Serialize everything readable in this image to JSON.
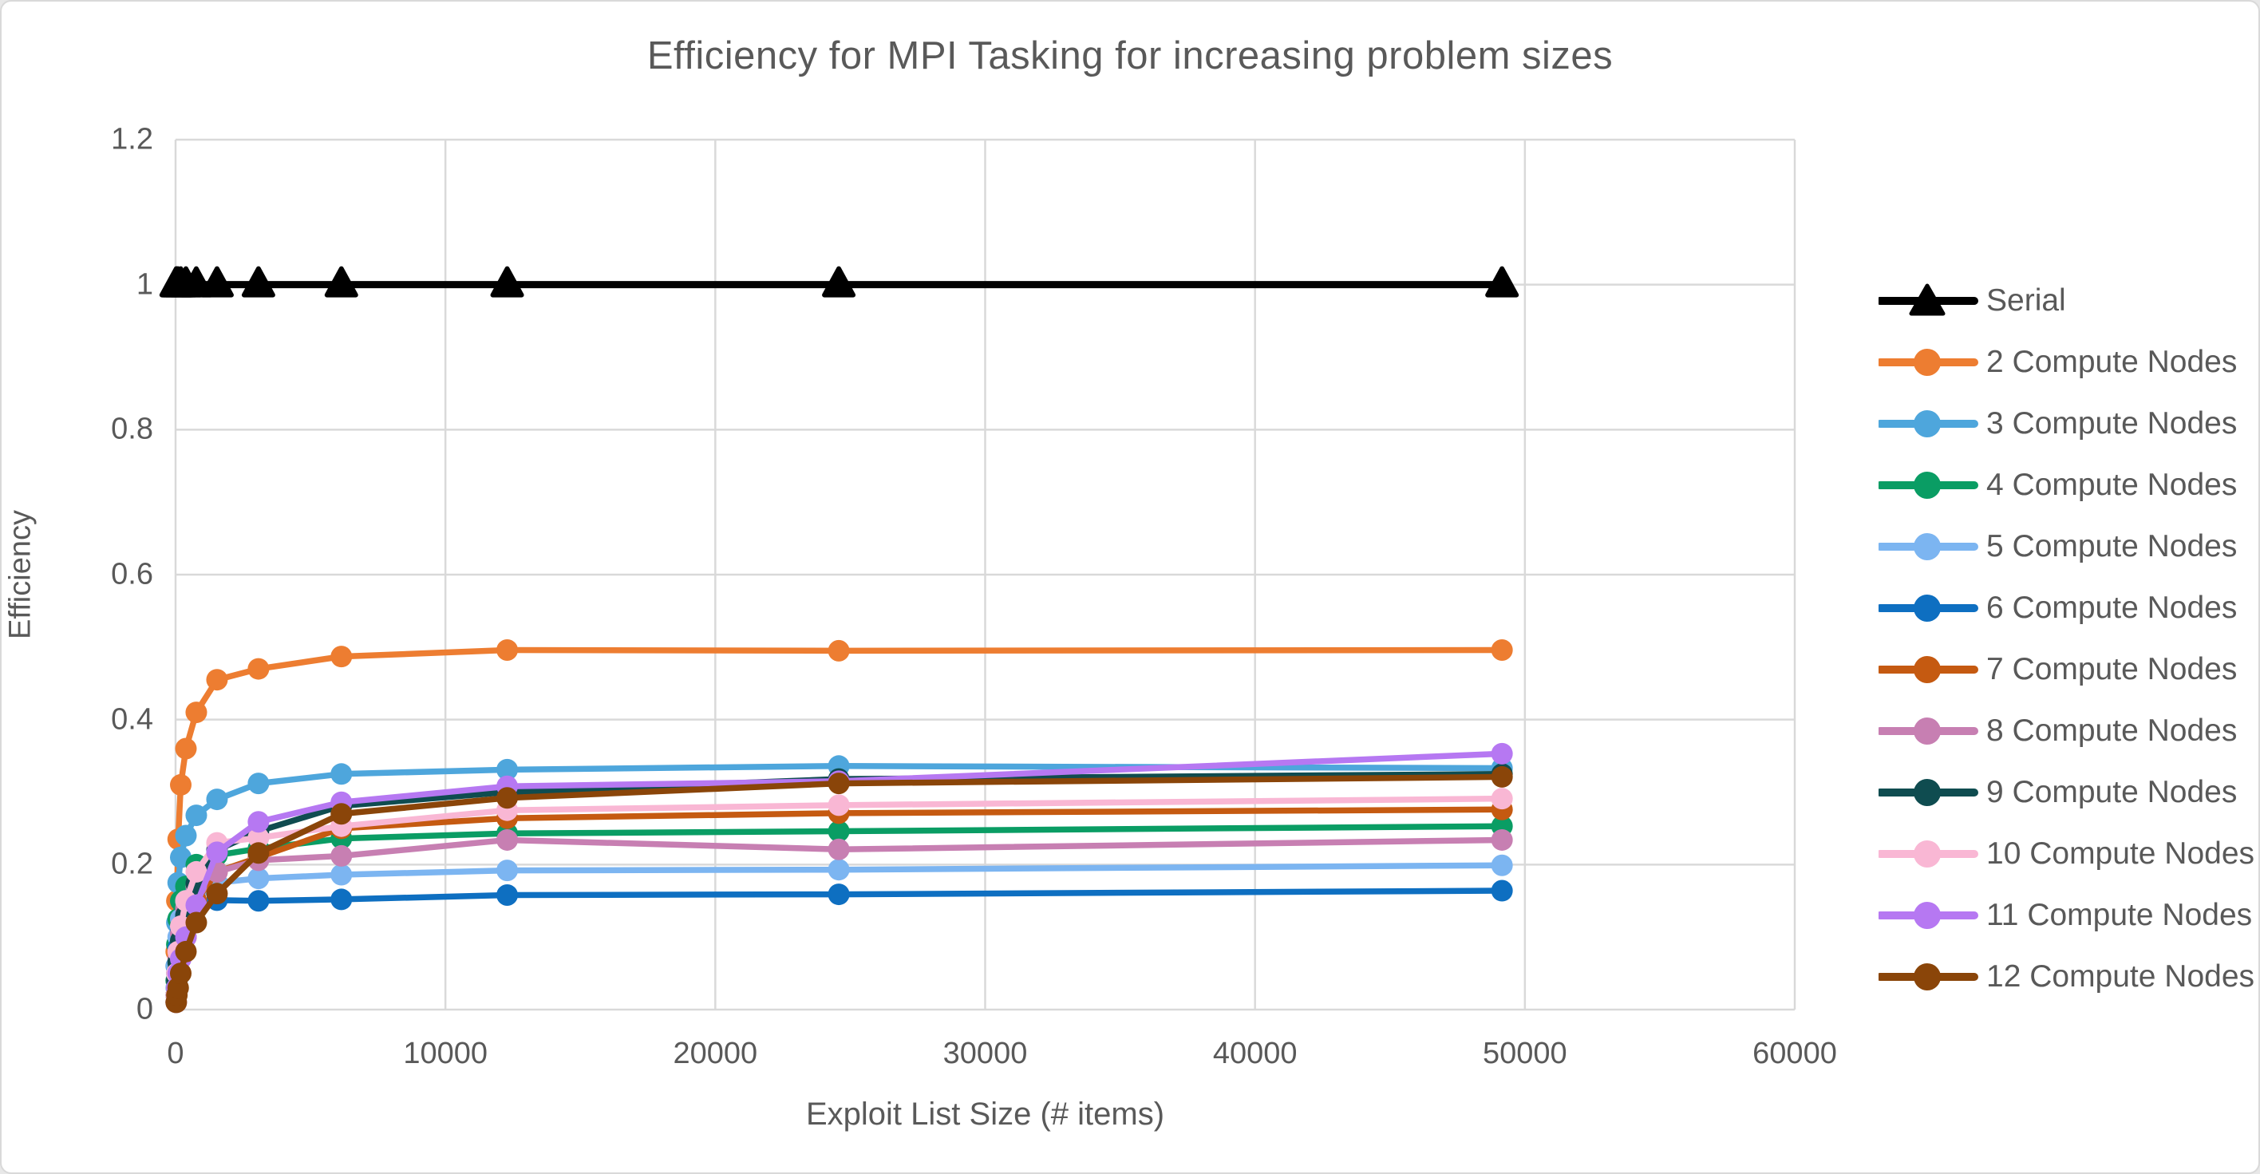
{
  "styles": {
    "background": "#FFFFFF",
    "border": "#D9D9D9",
    "gridline": "#D9D9D9",
    "text": "#595959"
  },
  "chart_data": {
    "type": "line",
    "title": "Efficiency for MPI Tasking for increasing problem sizes",
    "xlabel": "Exploit List Size (# items)",
    "ylabel": "Efficiency",
    "xlim": [
      0,
      60000
    ],
    "ylim": [
      0,
      1.2
    ],
    "grid": true,
    "legend_position": "right",
    "x_ticks": [
      0,
      10000,
      20000,
      30000,
      40000,
      50000,
      60000
    ],
    "x_tick_labels": [
      "0",
      "10000",
      "20000",
      "30000",
      "40000",
      "50000",
      "60000"
    ],
    "y_ticks": [
      0,
      0.2,
      0.4,
      0.6,
      0.8,
      1,
      1.2
    ],
    "y_tick_labels": [
      "0",
      "0.2",
      "0.4",
      "0.6",
      "0.8",
      "1",
      "1.2"
    ],
    "x": [
      24,
      48,
      96,
      192,
      384,
      768,
      1536,
      3072,
      6144,
      12288,
      24576,
      49152
    ],
    "series": [
      {
        "name": "Serial",
        "color": "#000000",
        "marker": "triangle",
        "values": [
          1,
          1,
          1,
          1,
          1,
          1,
          1,
          1,
          1,
          1,
          1,
          1
        ]
      },
      {
        "name": "2 Compute Nodes",
        "color": "#ED7D31",
        "marker": "circle",
        "values": [
          0.08,
          0.15,
          0.235,
          0.31,
          0.36,
          0.41,
          0.455,
          0.47,
          0.487,
          0.496,
          0.495,
          0.496
        ]
      },
      {
        "name": "3 Compute Nodes",
        "color": "#4EA6DC",
        "marker": "circle",
        "values": [
          0.06,
          0.12,
          0.175,
          0.21,
          0.24,
          0.268,
          0.29,
          0.312,
          0.325,
          0.331,
          0.336,
          0.333
        ]
      },
      {
        "name": "4 Compute Nodes",
        "color": "#0A9D64",
        "marker": "circle",
        "values": [
          0.04,
          0.09,
          0.125,
          0.15,
          0.17,
          0.2,
          0.213,
          0.222,
          0.236,
          0.243,
          0.246,
          0.253
        ]
      },
      {
        "name": "5 Compute Nodes",
        "color": "#7CB5F1",
        "marker": "circle",
        "values": [
          0.03,
          0.06,
          0.1,
          0.125,
          0.15,
          0.163,
          0.175,
          0.181,
          0.186,
          0.192,
          0.193,
          0.199
        ]
      },
      {
        "name": "6 Compute Nodes",
        "color": "#0E6FC1",
        "marker": "circle",
        "values": [
          0.02,
          0.05,
          0.085,
          0.11,
          0.128,
          0.144,
          0.151,
          0.15,
          0.152,
          0.158,
          0.159,
          0.164
        ]
      },
      {
        "name": "7 Compute Nodes",
        "color": "#C55A11",
        "marker": "circle",
        "values": [
          0.01,
          0.03,
          0.055,
          0.08,
          0.1,
          0.15,
          0.19,
          0.21,
          0.25,
          0.264,
          0.271,
          0.276
        ]
      },
      {
        "name": "8 Compute Nodes",
        "color": "#C77FB2",
        "marker": "circle",
        "values": [
          0.02,
          0.04,
          0.07,
          0.105,
          0.14,
          0.17,
          0.19,
          0.206,
          0.212,
          0.234,
          0.221,
          0.234
        ]
      },
      {
        "name": "9 Compute Nodes",
        "color": "#0F4C50",
        "marker": "circle",
        "values": [
          0.02,
          0.04,
          0.065,
          0.095,
          0.13,
          0.174,
          0.22,
          0.246,
          0.281,
          0.3,
          0.318,
          0.325
        ]
      },
      {
        "name": "10 Compute Nodes",
        "color": "#F9B7D4",
        "marker": "circle",
        "values": [
          0.02,
          0.05,
          0.08,
          0.115,
          0.15,
          0.19,
          0.23,
          0.237,
          0.253,
          0.275,
          0.282,
          0.291
        ]
      },
      {
        "name": "11 Compute Nodes",
        "color": "#B678F2",
        "marker": "circle",
        "values": [
          0.01,
          0.03,
          0.05,
          0.07,
          0.1,
          0.144,
          0.217,
          0.259,
          0.286,
          0.308,
          0.315,
          0.353
        ]
      },
      {
        "name": "12 Compute Nodes",
        "color": "#8A4509",
        "marker": "circle",
        "values": [
          0.01,
          0.02,
          0.03,
          0.05,
          0.08,
          0.12,
          0.16,
          0.216,
          0.27,
          0.292,
          0.312,
          0.321
        ]
      }
    ]
  }
}
